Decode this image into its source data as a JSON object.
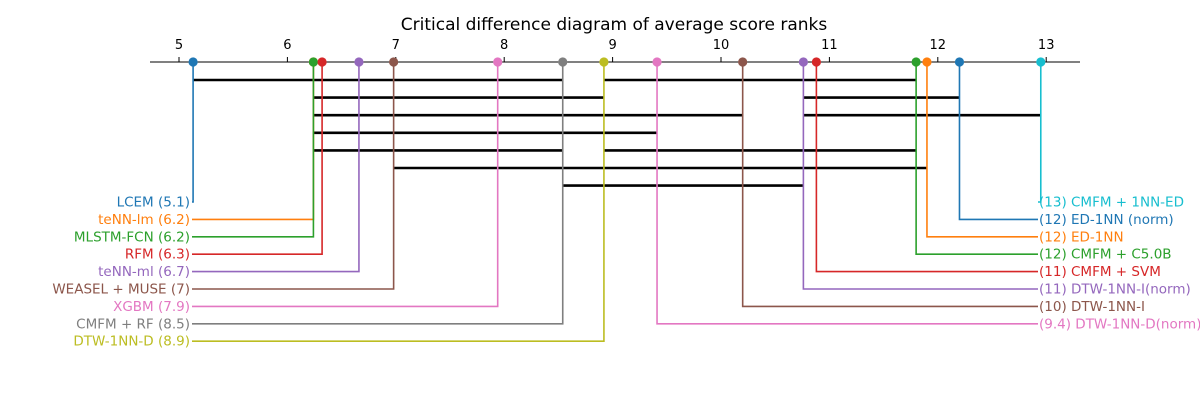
{
  "chart_data": {
    "type": "critical-difference",
    "title": "Critical difference diagram of average score ranks",
    "axis": {
      "ticks": [
        5,
        6,
        7,
        8,
        9,
        10,
        11,
        12,
        13
      ],
      "tick_labels": [
        "5",
        "6",
        "7",
        "8",
        "9",
        "10",
        "11",
        "12",
        "13"
      ],
      "range": [
        4.73,
        13.33
      ]
    },
    "left_methods": [
      {
        "label": "LCEM (5.1)",
        "rank": 5.13,
        "color": "#1f77b4"
      },
      {
        "label": "teNN-lm (6.2)",
        "rank": 6.24,
        "color": "#ff7f0e"
      },
      {
        "label": "MLSTM-FCN (6.2)",
        "rank": 6.24,
        "color": "#2ca02c"
      },
      {
        "label": "RFM (6.3)",
        "rank": 6.32,
        "color": "#d62728"
      },
      {
        "label": "teNN-ml (6.7)",
        "rank": 6.66,
        "color": "#9467bd"
      },
      {
        "label": "WEASEL + MUSE (7)",
        "rank": 6.98,
        "color": "#8c564b"
      },
      {
        "label": "XGBM (7.9)",
        "rank": 7.94,
        "color": "#e377c2"
      },
      {
        "label": "CMFM + RF (8.5)",
        "rank": 8.54,
        "color": "#7f7f7f"
      },
      {
        "label": "DTW-1NN-D (8.9)",
        "rank": 8.92,
        "color": "#bcbd22"
      }
    ],
    "right_methods": [
      {
        "label": "(13) CMFM + 1NN-ED",
        "rank": 12.95,
        "color": "#17becf"
      },
      {
        "label": "(12) ED-1NN (norm)",
        "rank": 12.2,
        "color": "#1f77b4"
      },
      {
        "label": "(12) ED-1NN",
        "rank": 11.9,
        "color": "#ff7f0e"
      },
      {
        "label": "(12) CMFM + C5.0B",
        "rank": 11.8,
        "color": "#2ca02c"
      },
      {
        "label": "(11)  CMFM + SVM",
        "rank": 10.88,
        "color": "#d62728"
      },
      {
        "label": "(11) DTW-1NN-I(norm)",
        "rank": 10.76,
        "color": "#9467bd"
      },
      {
        "label": "(10) DTW-1NN-I",
        "rank": 10.2,
        "color": "#8c564b"
      },
      {
        "label": "(9.4) DTW-1NN-D(norm)",
        "rank": 9.41,
        "color": "#e377c2"
      }
    ],
    "cliques": [
      [
        5.13,
        8.54
      ],
      [
        8.92,
        11.8
      ],
      [
        6.24,
        8.92
      ],
      [
        10.76,
        12.2
      ],
      [
        6.24,
        10.2
      ],
      [
        10.76,
        12.95
      ],
      [
        6.24,
        9.41
      ],
      [
        6.24,
        8.54
      ],
      [
        8.92,
        11.8
      ],
      [
        6.98,
        11.9
      ],
      [
        8.54,
        10.76
      ]
    ],
    "clique_rows": [
      0,
      0,
      1,
      1,
      2,
      2,
      3,
      4,
      4,
      5,
      6
    ]
  }
}
